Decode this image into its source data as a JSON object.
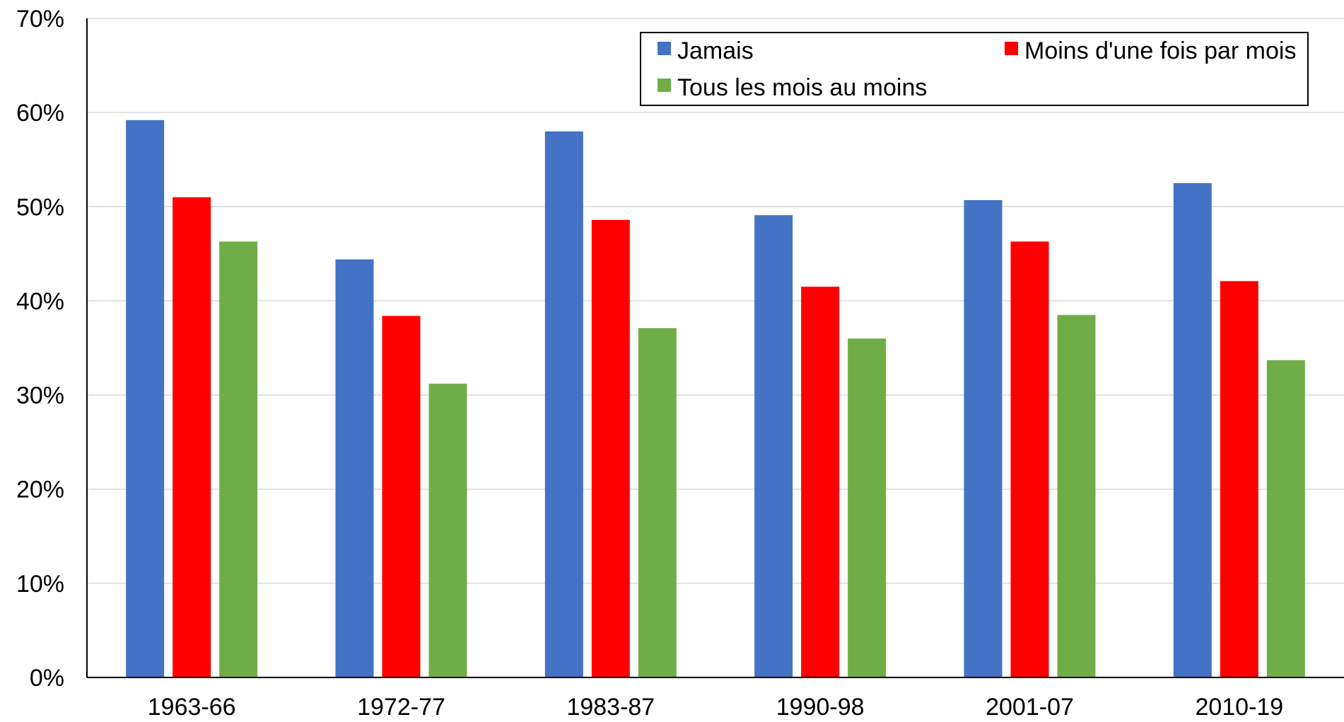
{
  "chart_data": {
    "type": "bar",
    "categories": [
      "1963-66",
      "1972-77",
      "1983-87",
      "1990-98",
      "2001-07",
      "2010-19"
    ],
    "series": [
      {
        "name": "Jamais",
        "color": "#4472C4",
        "values": [
          59.2,
          44.4,
          58.0,
          49.1,
          50.7,
          52.5
        ]
      },
      {
        "name": "Moins d'une fois par mois",
        "color": "#FF0000",
        "values": [
          51.0,
          38.4,
          48.6,
          41.5,
          46.3,
          42.1
        ]
      },
      {
        "name": "Tous les mois au moins",
        "color": "#70AD47",
        "values": [
          46.3,
          31.2,
          37.1,
          36.0,
          38.5,
          33.7
        ]
      }
    ],
    "ylim": [
      0,
      70
    ],
    "yticks": [
      0,
      10,
      20,
      30,
      40,
      50,
      60,
      70
    ],
    "ytick_labels": [
      "0%",
      "10%",
      "20%",
      "30%",
      "40%",
      "50%",
      "60%",
      "70%"
    ],
    "title": "",
    "xlabel": "",
    "ylabel": "",
    "grid": true,
    "legend_position": "top-right"
  }
}
